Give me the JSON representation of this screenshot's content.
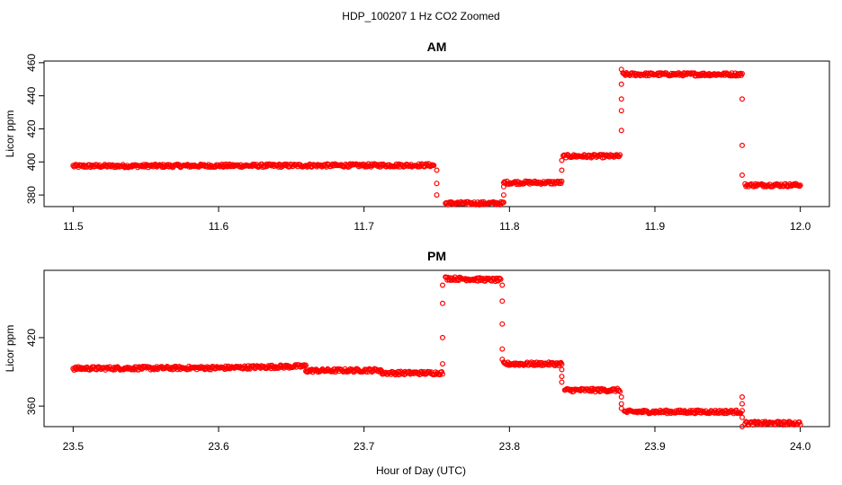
{
  "figure": {
    "title": "HDP_100207  1 Hz CO2 Zoomed",
    "xlabel": "Hour of Day (UTC)"
  },
  "colors": {
    "points": "#ff0000",
    "frame": "#000000"
  },
  "chart_data": [
    {
      "type": "scatter",
      "title": "AM",
      "ylabel": "Licor ppm",
      "xlim": [
        11.48,
        12.02
      ],
      "ylim": [
        373,
        461
      ],
      "xticks": [
        "11.5",
        "11.6",
        "11.7",
        "11.8",
        "11.9",
        "12.0"
      ],
      "xtick_values": [
        11.5,
        11.6,
        11.7,
        11.8,
        11.9,
        12.0
      ],
      "yticks": [
        "380",
        "400",
        "420",
        "440",
        "460"
      ],
      "ytick_values": [
        380,
        400,
        420,
        440,
        460
      ],
      "segments": [
        {
          "x0": 11.5,
          "x1": 11.748,
          "y0": 397.5,
          "y1": 398.0
        },
        {
          "x0": 11.756,
          "x1": 11.796,
          "y0": 375.0,
          "y1": 375.0
        },
        {
          "x0": 11.796,
          "x1": 11.836,
          "y0": 387.5,
          "y1": 387.5
        },
        {
          "x0": 11.837,
          "x1": 11.876,
          "y0": 403.5,
          "y1": 403.5
        },
        {
          "x0": 11.878,
          "x1": 11.96,
          "y0": 453.0,
          "y1": 453.0
        },
        {
          "x0": 11.962,
          "x1": 12.0,
          "y0": 386.0,
          "y1": 386.0
        }
      ],
      "transitions": [
        {
          "x": 11.75,
          "y": [
            395,
            387,
            380
          ]
        },
        {
          "x": 11.796,
          "y": [
            380,
            385
          ]
        },
        {
          "x": 11.836,
          "y": [
            395,
            401
          ]
        },
        {
          "x": 11.877,
          "y": [
            419,
            431,
            438,
            447,
            456
          ]
        },
        {
          "x": 11.96,
          "y": [
            438,
            410,
            392
          ]
        }
      ]
    },
    {
      "type": "scatter",
      "title": "PM",
      "ylabel": "Licor ppm",
      "xlim": [
        23.48,
        24.02
      ],
      "ylim": [
        342,
        479
      ],
      "xticks": [
        "23.5",
        "23.6",
        "23.7",
        "23.8",
        "23.9",
        "24.0"
      ],
      "xtick_values": [
        23.5,
        23.6,
        23.7,
        23.8,
        23.9,
        24.0
      ],
      "yticks": [
        "360",
        "420"
      ],
      "ytick_values": [
        360,
        420
      ],
      "segments": [
        {
          "x0": 23.5,
          "x1": 23.6,
          "y0": 393.0,
          "y1": 393.5
        },
        {
          "x0": 23.6,
          "x1": 23.66,
          "y0": 393.5,
          "y1": 395.0
        },
        {
          "x0": 23.66,
          "x1": 23.712,
          "y0": 391.0,
          "y1": 391.5
        },
        {
          "x0": 23.712,
          "x1": 23.754,
          "y0": 389.0,
          "y1": 389.0
        },
        {
          "x0": 23.756,
          "x1": 23.794,
          "y0": 472.0,
          "y1": 470.5
        },
        {
          "x0": 23.796,
          "x1": 23.836,
          "y0": 397.0,
          "y1": 397.0
        },
        {
          "x0": 23.838,
          "x1": 23.876,
          "y0": 374.0,
          "y1": 374.0
        },
        {
          "x0": 23.879,
          "x1": 23.959,
          "y0": 355.0,
          "y1": 355.0
        },
        {
          "x0": 23.962,
          "x1": 24.0,
          "y0": 345.0,
          "y1": 345.0
        }
      ],
      "transitions": [
        {
          "x": 23.754,
          "y": [
            397,
            420,
            450,
            466
          ]
        },
        {
          "x": 23.795,
          "y": [
            466,
            452,
            432,
            410,
            401
          ]
        },
        {
          "x": 23.836,
          "y": [
            392,
            386,
            381
          ]
        },
        {
          "x": 23.877,
          "y": [
            368,
            362,
            358
          ]
        },
        {
          "x": 23.96,
          "y": [
            368,
            362,
            356,
            342,
            350
          ]
        }
      ]
    }
  ]
}
